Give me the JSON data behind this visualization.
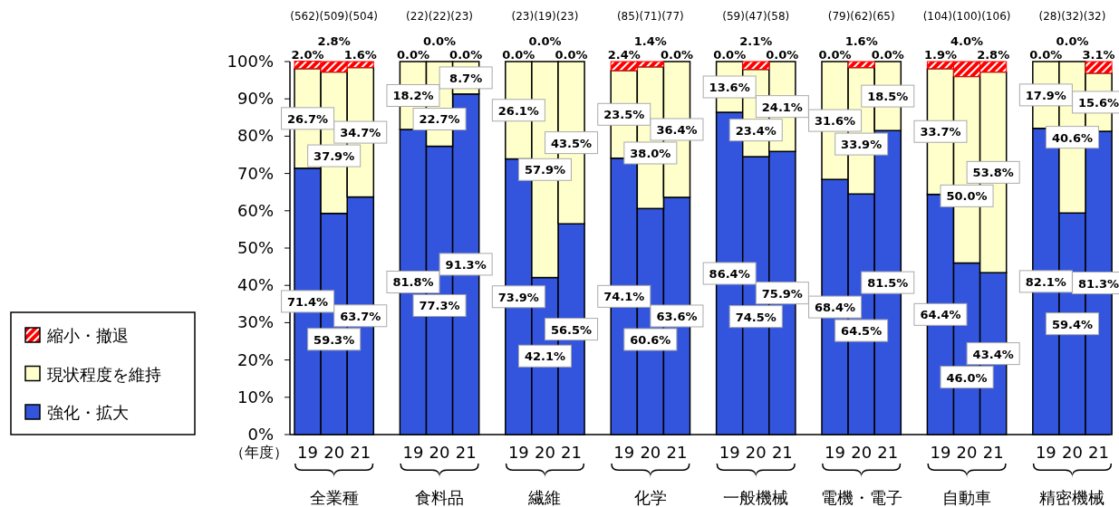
{
  "chart_data": {
    "type": "bar",
    "stacked": true,
    "xlabel": "（年度）",
    "legend": "left",
    "ylim": [
      0,
      100
    ],
    "yticks": [
      {
        "value": 0,
        "label": "0%"
      },
      {
        "value": 10,
        "label": "10%"
      },
      {
        "value": 20,
        "label": "20%"
      },
      {
        "value": 30,
        "label": "30%"
      },
      {
        "value": 40,
        "label": "40%"
      },
      {
        "value": 50,
        "label": "50%"
      },
      {
        "value": 60,
        "label": "60%"
      },
      {
        "value": 70,
        "label": "70%"
      },
      {
        "value": 80,
        "label": "80%"
      },
      {
        "value": 90,
        "label": "90%"
      },
      {
        "value": 100,
        "label": "100%"
      }
    ],
    "categories": [
      "19",
      "20",
      "21",
      "19",
      "20",
      "21",
      "19",
      "20",
      "21",
      "19",
      "20",
      "21",
      "19",
      "20",
      "21",
      "19",
      "20",
      "21",
      "19",
      "20",
      "21",
      "19",
      "20",
      "21"
    ],
    "series": [
      {
        "name": "強化・拡大",
        "color": "#3355dd",
        "values": [
          71.4,
          59.3,
          63.7,
          81.8,
          77.3,
          91.3,
          73.9,
          42.1,
          56.5,
          74.1,
          60.6,
          63.6,
          86.4,
          74.5,
          75.9,
          68.4,
          64.5,
          81.5,
          64.4,
          46.0,
          43.4,
          82.1,
          59.4,
          81.3
        ],
        "value_labels": [
          "71.4%",
          "59.3%",
          "63.7%",
          "81.8%",
          "77.3%",
          "91.3%",
          "73.9%",
          "42.1%",
          "56.5%",
          "74.1%",
          "60.6%",
          "63.6%",
          "86.4%",
          "74.5%",
          "75.9%",
          "68.4%",
          "64.5%",
          "81.5%",
          "64.4%",
          "46.0%",
          "43.4%",
          "82.1%",
          "59.4%",
          "81.3%"
        ]
      },
      {
        "name": "現状程度を維持",
        "color": "#ffffcc",
        "values": [
          26.7,
          37.9,
          34.7,
          18.2,
          22.7,
          8.7,
          26.1,
          57.9,
          43.5,
          23.5,
          38.0,
          36.4,
          13.6,
          23.4,
          24.1,
          31.6,
          33.9,
          18.5,
          33.7,
          50.0,
          53.8,
          17.9,
          40.6,
          15.6
        ],
        "value_labels": [
          "26.7%",
          "37.9%",
          "34.7%",
          "18.2%",
          "22.7%",
          "8.7%",
          "26.1%",
          "57.9%",
          "43.5%",
          "23.5%",
          "38.0%",
          "36.4%",
          "13.6%",
          "23.4%",
          "24.1%",
          "31.6%",
          "33.9%",
          "18.5%",
          "33.7%",
          "50.0%",
          "53.8%",
          "17.9%",
          "40.6%",
          "15.6%"
        ]
      },
      {
        "name": "縮小・撤退",
        "color": "#ff0000",
        "values": [
          2.0,
          2.8,
          1.6,
          0.0,
          0.0,
          0.0,
          0.0,
          0.0,
          0.0,
          2.4,
          1.4,
          0.0,
          0.0,
          2.1,
          0.0,
          0.0,
          1.6,
          0.0,
          1.9,
          4.0,
          2.8,
          0.0,
          0.0,
          3.1
        ],
        "value_labels": [
          "2.0%",
          "2.8%",
          "1.6%",
          "0.0%",
          "0.0%",
          "0.0%",
          "0.0%",
          "0.0%",
          "0.0%",
          "2.4%",
          "1.4%",
          "0.0%",
          "0.0%",
          "2.1%",
          "0.0%",
          "0.0%",
          "1.6%",
          "0.0%",
          "1.9%",
          "4.0%",
          "2.8%",
          "0.0%",
          "0.0%",
          "3.1%"
        ]
      }
    ],
    "annotations": [
      "(562)(509)(504)",
      "(22)(22)(23)",
      "(23)(19)(23)",
      "(85)(71)(77)",
      "(59)(47)(58)",
      "(79)(62)(65)",
      "(104)(100)(106)",
      "(28)(32)(32)",
      "全業種",
      "食料品",
      "繊維",
      "化学",
      "一般機械",
      "電機・電子",
      "自動車",
      "精密機械"
    ]
  }
}
